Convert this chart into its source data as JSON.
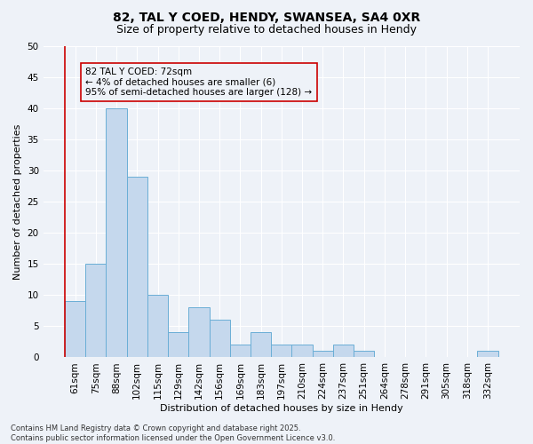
{
  "title1": "82, TAL Y COED, HENDY, SWANSEA, SA4 0XR",
  "title2": "Size of property relative to detached houses in Hendy",
  "xlabel": "Distribution of detached houses by size in Hendy",
  "ylabel": "Number of detached properties",
  "categories": [
    "61sqm",
    "75sqm",
    "88sqm",
    "102sqm",
    "115sqm",
    "129sqm",
    "142sqm",
    "156sqm",
    "169sqm",
    "183sqm",
    "197sqm",
    "210sqm",
    "224sqm",
    "237sqm",
    "251sqm",
    "264sqm",
    "278sqm",
    "291sqm",
    "305sqm",
    "318sqm",
    "332sqm"
  ],
  "values": [
    9,
    15,
    40,
    29,
    10,
    4,
    8,
    6,
    2,
    4,
    2,
    2,
    1,
    2,
    1,
    0,
    0,
    0,
    0,
    0,
    1
  ],
  "bar_fill_color": "#c5d8ed",
  "bar_edge_color": "#6aaed6",
  "vline_color": "#cc0000",
  "vline_x": -0.5,
  "annotation_box_color": "#cc0000",
  "annotation_text_line1": "82 TAL Y COED: 72sqm",
  "annotation_text_line2": "← 4% of detached houses are smaller (6)",
  "annotation_text_line3": "95% of semi-detached houses are larger (128) →",
  "ylim": [
    0,
    50
  ],
  "yticks": [
    0,
    5,
    10,
    15,
    20,
    25,
    30,
    35,
    40,
    45,
    50
  ],
  "footer": "Contains HM Land Registry data © Crown copyright and database right 2025.\nContains public sector information licensed under the Open Government Licence v3.0.",
  "bg_color": "#eef2f8",
  "grid_color": "#ffffff",
  "title1_fontsize": 10,
  "title2_fontsize": 9,
  "axis_label_fontsize": 8,
  "tick_fontsize": 7.5,
  "annotation_fontsize": 7.5
}
